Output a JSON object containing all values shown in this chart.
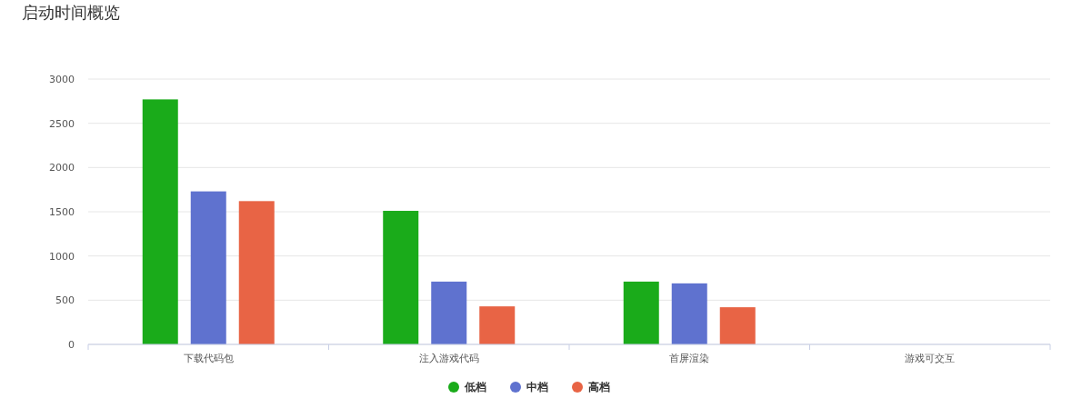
{
  "chart_data": {
    "type": "bar",
    "title": "启动时间概览",
    "categories": [
      "下载代码包",
      "注入游戏代码",
      "首屏渲染",
      "游戏可交互"
    ],
    "series": [
      {
        "name": "低档",
        "color": "#1aab1a",
        "values": [
          2770,
          1510,
          710,
          null
        ]
      },
      {
        "name": "中档",
        "color": "#5f72cf",
        "values": [
          1730,
          710,
          690,
          null
        ]
      },
      {
        "name": "高档",
        "color": "#e86445",
        "values": [
          1620,
          430,
          420,
          null
        ]
      }
    ],
    "ylim": [
      0,
      3000
    ],
    "yticks": [
      0,
      500,
      1000,
      1500,
      2000,
      2500,
      3000
    ],
    "grid": "y",
    "legend": "bottom"
  }
}
